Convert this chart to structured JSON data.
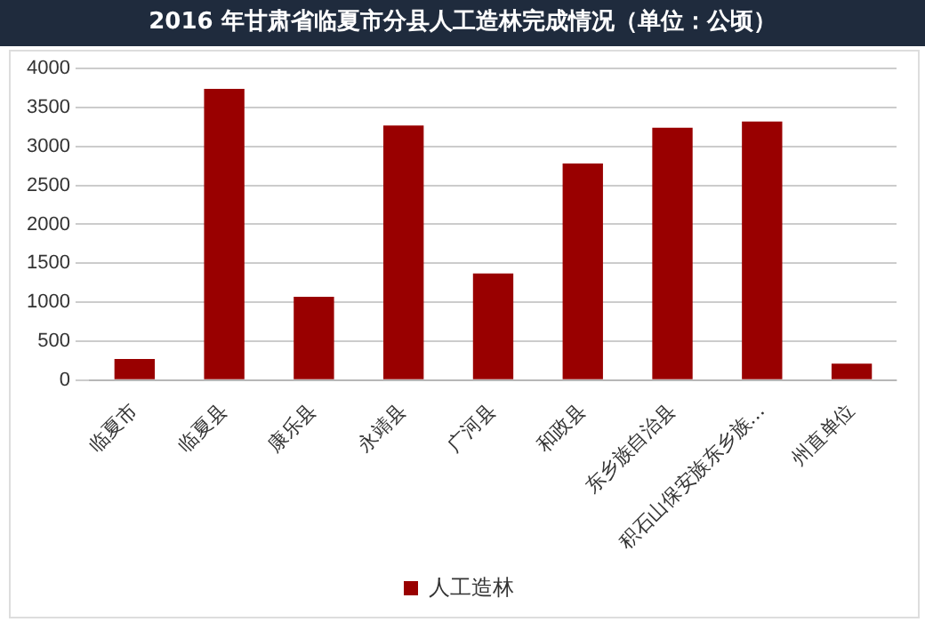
{
  "chart_data": {
    "type": "bar",
    "title": "2016 年甘肃省临夏市分县人工造林完成情况（单位：公顷）",
    "categories": [
      "临夏市",
      "临夏县",
      "康乐县",
      "永靖县",
      "广河县",
      "和政县",
      "东乡族自治县",
      "积石山保安族东乡族…",
      "州直单位"
    ],
    "series": [
      {
        "name": "人工造林",
        "color": "#990000",
        "values": [
          270,
          3740,
          1070,
          3270,
          1370,
          2780,
          3240,
          3320,
          210
        ]
      }
    ],
    "ylim": [
      0,
      4000
    ],
    "yticks": [
      0,
      500,
      1000,
      1500,
      2000,
      2500,
      3000,
      3500,
      4000
    ],
    "grid": "y",
    "legend": "bottom"
  }
}
